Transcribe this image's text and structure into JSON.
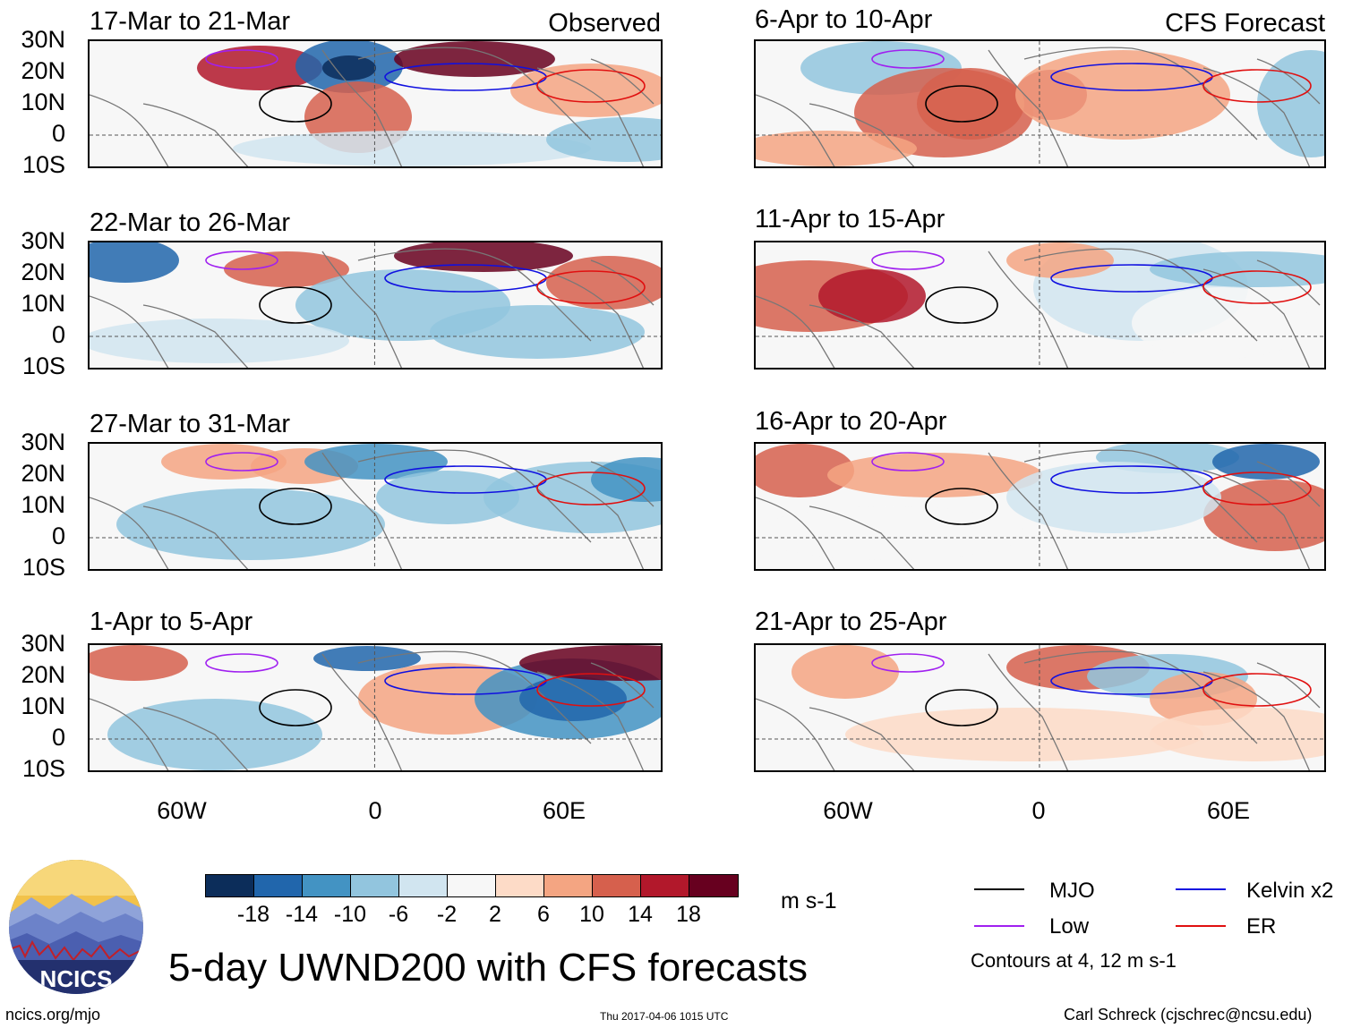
{
  "header": {
    "left_tag": "Observed",
    "right_tag": "CFS Forecast"
  },
  "panels_left": [
    {
      "title": "17-Mar to 21-Mar"
    },
    {
      "title": "22-Mar to 26-Mar"
    },
    {
      "title": "27-Mar to 31-Mar"
    },
    {
      "title": "1-Apr to 5-Apr"
    }
  ],
  "panels_right": [
    {
      "title": "6-Apr to 10-Apr"
    },
    {
      "title": "11-Apr to 15-Apr"
    },
    {
      "title": "16-Apr to 20-Apr"
    },
    {
      "title": "21-Apr to 25-Apr"
    }
  ],
  "lat_labels": [
    "30N",
    "20N",
    "10N",
    "0",
    "10S"
  ],
  "lon_labels": [
    "60W",
    "0",
    "60E"
  ],
  "colorbar": {
    "colors": [
      "#0c2d5a",
      "#2166ac",
      "#4393c3",
      "#92c5de",
      "#d1e5f0",
      "#f7f7f7",
      "#fddbc7",
      "#f4a582",
      "#d6604d",
      "#b2182b",
      "#67001f"
    ],
    "ticks": [
      "-18",
      "-14",
      "-10",
      "-6",
      "-2",
      "2",
      "6",
      "10",
      "14",
      "18"
    ],
    "units": "m s-1"
  },
  "legend": {
    "items": [
      {
        "label": "MJO",
        "color": "#000000"
      },
      {
        "label": "Kelvin x2",
        "color": "#1010e0"
      },
      {
        "label": "Low",
        "color": "#a020f0"
      },
      {
        "label": "ER",
        "color": "#e01010"
      }
    ],
    "note": "Contours at 4, 12 m s-1"
  },
  "title": "5-day UWND200 with CFS forecasts",
  "footer": {
    "left": "ncics.org/mjo",
    "center": "Thu 2017-04-06 1015 UTC",
    "right": "Carl Schreck (cjschrec@ncsu.edu)"
  },
  "logo": {
    "text": "NCICS"
  }
}
